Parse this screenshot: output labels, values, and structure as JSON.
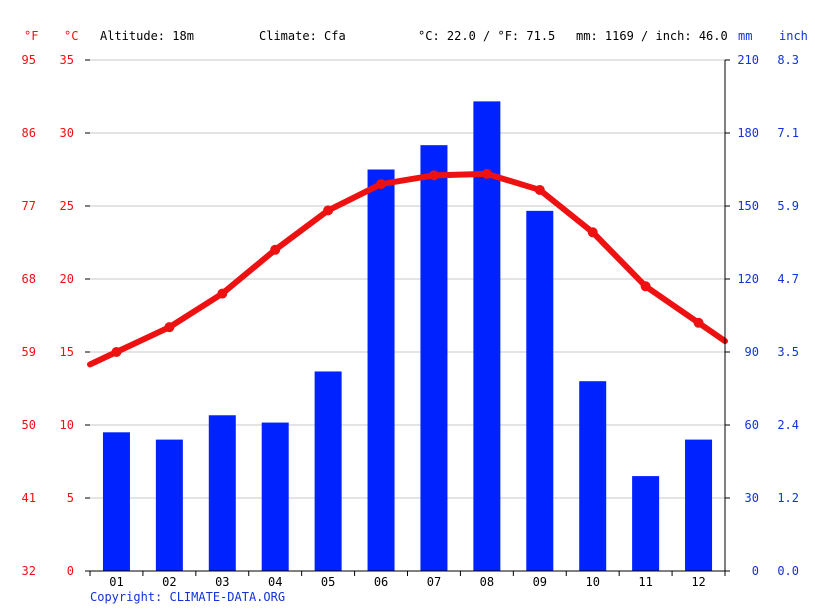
{
  "header": {
    "fahrenheit_unit": "°F",
    "celsius_unit": "°C",
    "altitude": "Altitude: 18m",
    "climate": "Climate: Cfa",
    "temperature_summary": "°C: 22.0 / °F: 71.5",
    "precipitation_summary": "mm: 1169 / inch: 46.0",
    "mm_unit": "mm",
    "inch_unit": "inch"
  },
  "footer": {
    "copyright": "Copyright: CLIMATE-DATA.ORG"
  },
  "colors": {
    "temperature": "#ee1111",
    "precipitation": "#0022ff",
    "grid": "#c8c8c8",
    "axis": "#000000",
    "left_labels": "#ee1111",
    "right_labels": "#1133dd"
  },
  "chart_data": {
    "type": "bar",
    "categories": [
      "01",
      "02",
      "03",
      "04",
      "05",
      "06",
      "07",
      "08",
      "09",
      "10",
      "11",
      "12"
    ],
    "series": [
      {
        "name": "Precipitation",
        "type": "bar",
        "unit": "mm",
        "axis": "right",
        "values": [
          57,
          54,
          64,
          61,
          82,
          165,
          175,
          193,
          148,
          78,
          39,
          54
        ]
      },
      {
        "name": "Temperature",
        "type": "line",
        "unit": "°C",
        "axis": "left",
        "values": [
          15.0,
          16.7,
          19.0,
          22.0,
          24.7,
          26.5,
          27.1,
          27.2,
          26.1,
          23.2,
          19.5,
          17.0
        ]
      }
    ],
    "y_left": {
      "unit": "°C",
      "ylim": [
        0,
        35
      ],
      "ticks": [
        "0",
        "5",
        "10",
        "15",
        "20",
        "25",
        "30",
        "35"
      ]
    },
    "y_left_fahrenheit": {
      "unit": "°F",
      "ticks": [
        "32",
        "41",
        "50",
        "59",
        "68",
        "77",
        "86",
        "95"
      ]
    },
    "y_right": {
      "unit": "mm",
      "ylim": [
        0,
        210
      ],
      "ticks": [
        "0",
        "30",
        "60",
        "90",
        "120",
        "150",
        "180",
        "210"
      ]
    },
    "y_right_inch": {
      "unit": "inch",
      "ticks": [
        "0.0",
        "1.2",
        "2.4",
        "3.5",
        "4.7",
        "5.9",
        "7.1",
        "8.3"
      ]
    },
    "grid": true,
    "legend": "none"
  }
}
